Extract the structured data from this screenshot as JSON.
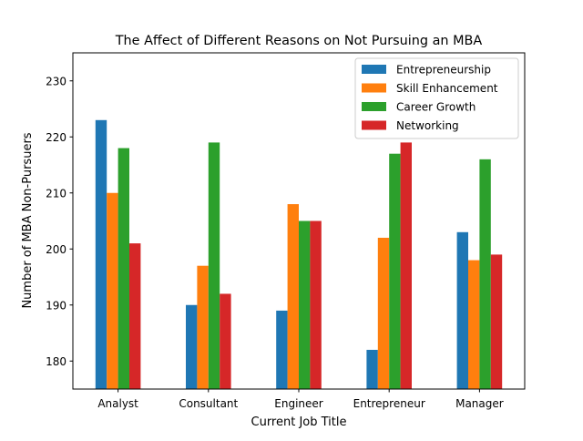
{
  "chart_data": {
    "type": "bar",
    "title": "The Affect of Different Reasons on Not Pursuing an MBA",
    "xlabel": "Current Job Title",
    "ylabel": "Number of MBA Non-Pursuers",
    "categories": [
      "Analyst",
      "Consultant",
      "Engineer",
      "Entrepreneur",
      "Manager"
    ],
    "series": [
      {
        "name": "Entrepreneurship",
        "color": "#1f77b4",
        "values": [
          223,
          190,
          189,
          182,
          203
        ]
      },
      {
        "name": "Skill Enhancement",
        "color": "#ff7f0e",
        "values": [
          210,
          197,
          208,
          202,
          198
        ]
      },
      {
        "name": "Career Growth",
        "color": "#2ca02c",
        "values": [
          218,
          219,
          205,
          217,
          216
        ]
      },
      {
        "name": "Networking",
        "color": "#d62728",
        "values": [
          201,
          192,
          205,
          219,
          199
        ]
      }
    ],
    "ylim": [
      175,
      235
    ],
    "yticks": [
      180,
      190,
      200,
      210,
      220,
      230
    ],
    "grid": false,
    "legend_position": "top-right"
  }
}
